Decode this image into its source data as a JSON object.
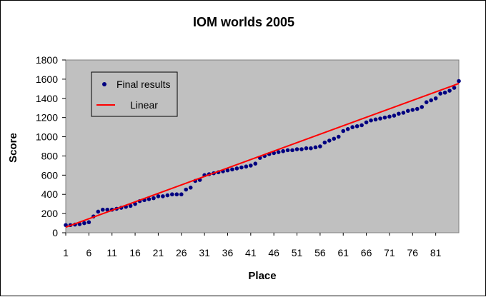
{
  "chart_data": {
    "type": "scatter",
    "title": "IOM worlds 2005",
    "xlabel": "Place",
    "ylabel": "Score",
    "xlim": [
      1,
      86
    ],
    "ylim": [
      0,
      1800
    ],
    "x_ticks": [
      "1",
      "6",
      "11",
      "16",
      "21",
      "26",
      "31",
      "36",
      "41",
      "46",
      "51",
      "56",
      "61",
      "66",
      "71",
      "76",
      "81"
    ],
    "y_ticks": [
      "0",
      "200",
      "400",
      "600",
      "800",
      "1000",
      "1200",
      "1400",
      "1600",
      "1800"
    ],
    "grid": false,
    "plot_background": "#c0c0c0",
    "legend_position": "top-left",
    "series": [
      {
        "name": "Final results",
        "kind": "scatter",
        "color": "#000080",
        "x": [
          1,
          2,
          3,
          4,
          5,
          6,
          7,
          8,
          9,
          10,
          11,
          12,
          13,
          14,
          15,
          16,
          17,
          18,
          19,
          20,
          21,
          22,
          23,
          24,
          25,
          26,
          27,
          28,
          29,
          30,
          31,
          32,
          33,
          34,
          35,
          36,
          37,
          38,
          39,
          40,
          41,
          42,
          43,
          44,
          45,
          46,
          47,
          48,
          49,
          50,
          51,
          52,
          53,
          54,
          55,
          56,
          57,
          58,
          59,
          60,
          61,
          62,
          63,
          64,
          65,
          66,
          67,
          68,
          69,
          70,
          71,
          72,
          73,
          74,
          75,
          76,
          77,
          78,
          79,
          80,
          81,
          82,
          83,
          84,
          85,
          86
        ],
        "y": [
          80,
          80,
          85,
          90,
          100,
          110,
          170,
          220,
          240,
          240,
          240,
          250,
          260,
          270,
          280,
          300,
          330,
          340,
          350,
          360,
          380,
          380,
          390,
          400,
          400,
          400,
          450,
          470,
          540,
          550,
          600,
          610,
          620,
          630,
          640,
          650,
          660,
          670,
          680,
          690,
          700,
          720,
          780,
          800,
          820,
          830,
          840,
          850,
          860,
          860,
          870,
          870,
          880,
          880,
          890,
          900,
          940,
          960,
          980,
          1000,
          1060,
          1080,
          1100,
          1110,
          1120,
          1150,
          1170,
          1180,
          1190,
          1200,
          1210,
          1220,
          1240,
          1250,
          1270,
          1280,
          1290,
          1310,
          1360,
          1380,
          1400,
          1450,
          1460,
          1480,
          1510,
          1580
        ]
      },
      {
        "name": "Linear",
        "kind": "line",
        "color": "#ff0000",
        "x": [
          1,
          86
        ],
        "y": [
          58,
          1555
        ]
      }
    ]
  }
}
